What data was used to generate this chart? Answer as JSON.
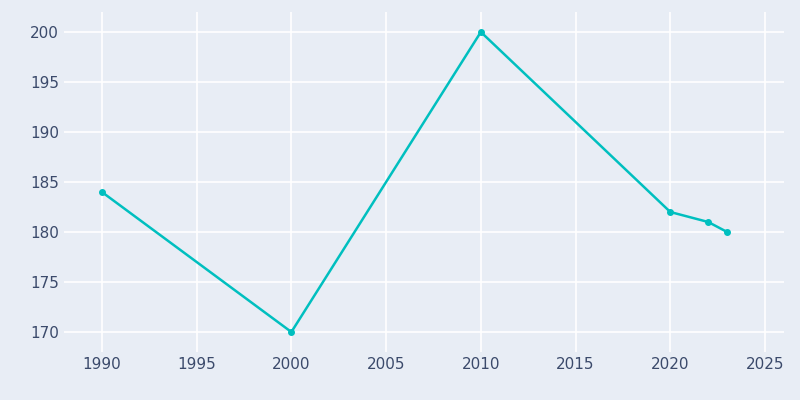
{
  "years": [
    1990,
    2000,
    2010,
    2020,
    2022,
    2023
  ],
  "values": [
    184,
    170,
    200,
    182,
    181,
    180
  ],
  "line_color": "#00BFBF",
  "background_color": "#E8EDF5",
  "grid_color": "#FFFFFF",
  "tick_color": "#3B4A6B",
  "xlim": [
    1988,
    2026
  ],
  "ylim": [
    168,
    202
  ],
  "yticks": [
    170,
    175,
    180,
    185,
    190,
    195,
    200
  ],
  "xticks": [
    1990,
    1995,
    2000,
    2005,
    2010,
    2015,
    2020,
    2025
  ],
  "linewidth": 1.8,
  "marker": "o",
  "markersize": 4
}
